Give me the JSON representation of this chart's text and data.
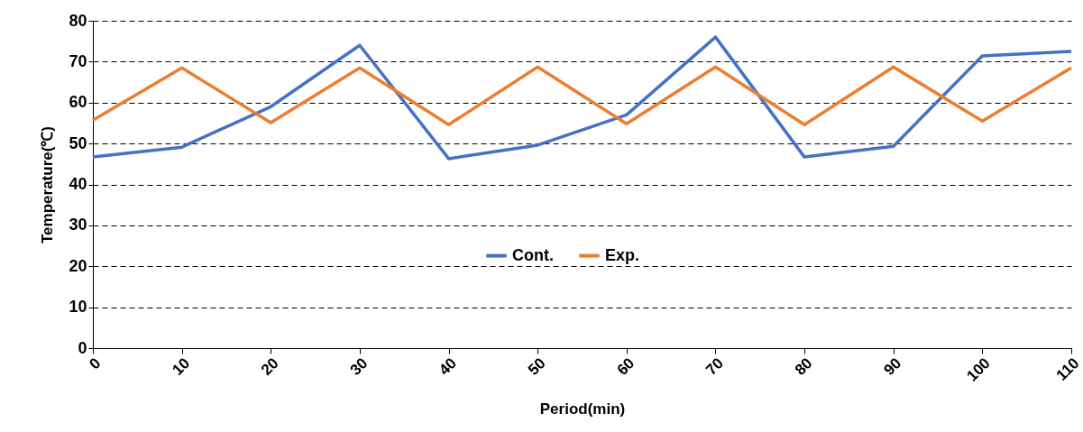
{
  "chart_data": {
    "type": "line",
    "xlabel": "Period(min)",
    "ylabel": "Temperature(℃)",
    "x": [
      0,
      10,
      20,
      30,
      40,
      50,
      60,
      70,
      80,
      90,
      100,
      110
    ],
    "series": [
      {
        "name": "Cont.",
        "color": "#4472c4",
        "values": [
          46.7,
          49.1,
          59.0,
          74.0,
          46.3,
          49.6,
          57.0,
          76.0,
          46.7,
          49.3,
          71.4,
          72.5
        ]
      },
      {
        "name": "Exp.",
        "color": "#ed7d31",
        "values": [
          55.7,
          68.5,
          55.1,
          68.5,
          54.6,
          68.7,
          54.8,
          68.7,
          54.6,
          68.7,
          55.5,
          68.5
        ]
      }
    ],
    "xlim": [
      0,
      110
    ],
    "xticks": [
      0,
      10,
      20,
      30,
      40,
      50,
      60,
      70,
      80,
      90,
      100,
      110
    ],
    "ylim": [
      0,
      80
    ],
    "yticks": [
      0,
      10,
      20,
      30,
      40,
      50,
      60,
      70,
      80
    ],
    "grid": "y",
    "legend": "center"
  }
}
